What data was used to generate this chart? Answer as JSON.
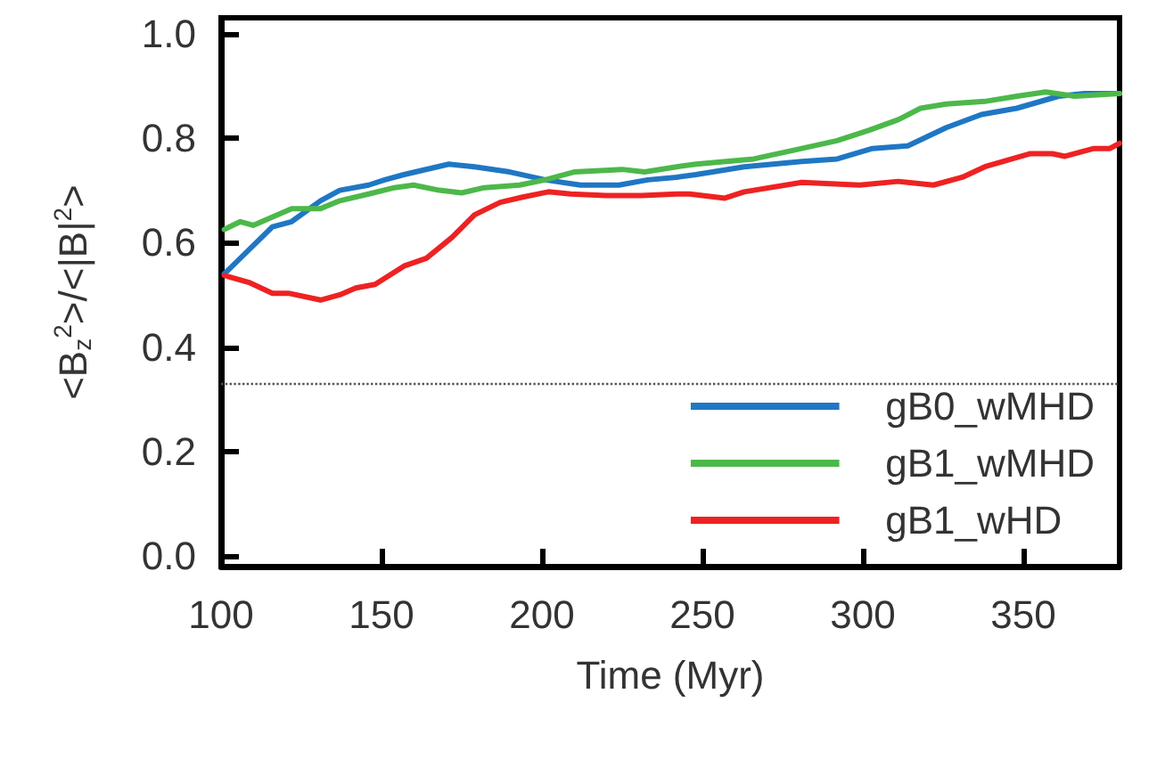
{
  "chart_data": {
    "type": "line",
    "xlabel": "Time (Myr)",
    "ylabel": "<B$_{z}$$^{2}$>/<|B|$^{2}$>",
    "xlim": [
      100,
      380
    ],
    "xticks": [
      100,
      150,
      200,
      250,
      300,
      350
    ],
    "ylim": [
      -0.02,
      1.03
    ],
    "yticks": [
      {
        "value": 0,
        "label": "0.0"
      },
      0.2,
      0.4,
      0.6,
      0.8,
      {
        "value": 1,
        "label": "1.0"
      }
    ],
    "grid": false,
    "legend": "bottom right",
    "line_style": "solid",
    "marker": "none",
    "ref_lines": [
      {
        "axis": "y",
        "value": 0.333,
        "label": null,
        "color": "#555555",
        "line_style": "dotted"
      }
    ],
    "series": [
      {
        "name": "gB0_wMHD",
        "color": "#1f77c4",
        "x": [
          101,
          116,
          122,
          131,
          137,
          146,
          151,
          157,
          171,
          179,
          190,
          201,
          212,
          224,
          233,
          242,
          248,
          263,
          272,
          281,
          292,
          303,
          314,
          326,
          337,
          348,
          361,
          369,
          380
        ],
        "values": [
          0.54,
          0.63,
          0.64,
          0.68,
          0.7,
          0.71,
          0.72,
          0.73,
          0.75,
          0.745,
          0.735,
          0.72,
          0.71,
          0.71,
          0.72,
          0.725,
          0.73,
          0.745,
          0.75,
          0.755,
          0.76,
          0.78,
          0.785,
          0.82,
          0.845,
          0.857,
          0.88,
          0.885,
          0.885
        ]
      },
      {
        "name": "gB1_wMHD",
        "color": "#4cb84a",
        "x": [
          101,
          106,
          110,
          122,
          131,
          137,
          146,
          154,
          160,
          168,
          175,
          182,
          193,
          201,
          210,
          225,
          232,
          242,
          248,
          266,
          281,
          292,
          302,
          311,
          318,
          326,
          338,
          348,
          357,
          366,
          380
        ],
        "values": [
          0.625,
          0.64,
          0.633,
          0.665,
          0.665,
          0.68,
          0.693,
          0.705,
          0.71,
          0.7,
          0.695,
          0.705,
          0.71,
          0.72,
          0.735,
          0.74,
          0.735,
          0.745,
          0.75,
          0.76,
          0.78,
          0.795,
          0.815,
          0.835,
          0.857,
          0.865,
          0.87,
          0.88,
          0.888,
          0.88,
          0.885
        ]
      },
      {
        "name": "gB1_wHD",
        "color": "#ee2222",
        "x": [
          101,
          109,
          116,
          121,
          131,
          137,
          142,
          148,
          157,
          164,
          172,
          179,
          187,
          194,
          202,
          209,
          220,
          231,
          242,
          246,
          257,
          263,
          281,
          299,
          311,
          322,
          331,
          338,
          352,
          359,
          363,
          372,
          377,
          380
        ],
        "values": [
          0.537,
          0.523,
          0.503,
          0.503,
          0.49,
          0.5,
          0.513,
          0.52,
          0.555,
          0.57,
          0.61,
          0.653,
          0.677,
          0.687,
          0.697,
          0.693,
          0.69,
          0.69,
          0.693,
          0.693,
          0.685,
          0.697,
          0.715,
          0.71,
          0.717,
          0.71,
          0.725,
          0.745,
          0.77,
          0.77,
          0.765,
          0.78,
          0.78,
          0.79
        ]
      }
    ]
  }
}
